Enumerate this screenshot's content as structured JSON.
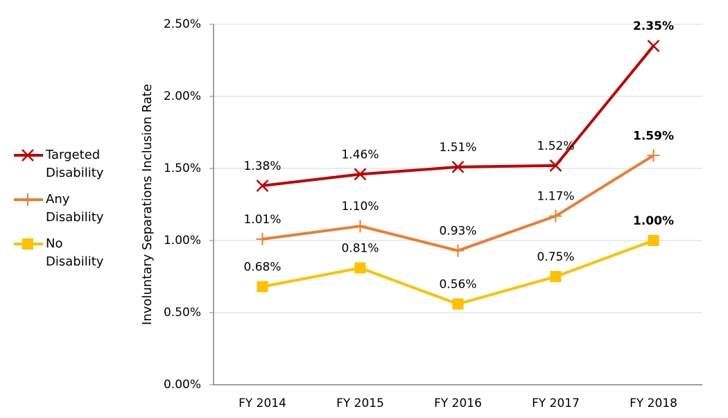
{
  "chart_data": {
    "type": "line",
    "y_label": "Involuntary Separations Inclusion Rate",
    "categories": [
      "FY 2014",
      "FY 2015",
      "FY 2016",
      "FY 2017",
      "FY 2018"
    ],
    "series": [
      {
        "name": "Targeted Disability",
        "color": "#c00000",
        "marker": "x",
        "values": [
          1.38,
          1.46,
          1.51,
          1.52,
          2.35
        ],
        "value_labels": [
          "1.38%",
          "1.46%",
          "1.51%",
          "1.52%",
          "2.35%"
        ]
      },
      {
        "name": "Any Disability",
        "color": "#ed7d31",
        "marker": "plus",
        "values": [
          1.01,
          1.1,
          0.93,
          1.17,
          1.59
        ],
        "value_labels": [
          "1.01%",
          "1.10%",
          "0.93%",
          "1.17%",
          "1.59%"
        ]
      },
      {
        "name": "No Disability",
        "color": "#ffc000",
        "marker": "square",
        "values": [
          0.68,
          0.81,
          0.56,
          0.75,
          1.0
        ],
        "value_labels": [
          "0.68%",
          "0.81%",
          "0.56%",
          "0.75%",
          "1.00%"
        ]
      }
    ],
    "ylim": [
      0,
      2.5
    ],
    "yticks": [
      {
        "value": 0,
        "label": "0.00%"
      },
      {
        "value": 0.5,
        "label": "0.50%"
      },
      {
        "value": 1,
        "label": "1.00%"
      },
      {
        "value": 1.5,
        "label": "1.50%"
      },
      {
        "value": 2,
        "label": "2.00%"
      },
      {
        "value": 2.5,
        "label": "2.50%"
      }
    ],
    "grid": true,
    "legend": "left"
  }
}
